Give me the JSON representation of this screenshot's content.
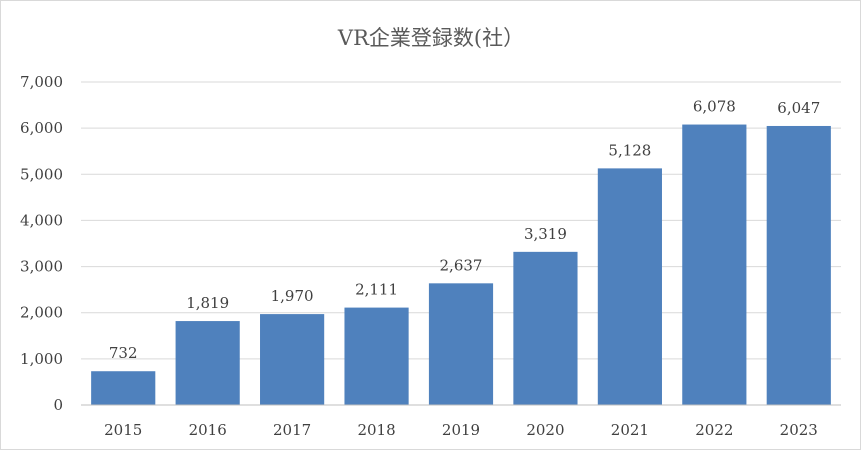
{
  "chart_data": {
    "type": "bar",
    "title": "VR企業登録数(社）",
    "categories": [
      "2015",
      "2016",
      "2017",
      "2018",
      "2019",
      "2020",
      "2021",
      "2022",
      "2023"
    ],
    "values": [
      732,
      1819,
      1970,
      2111,
      2637,
      3319,
      5128,
      6078,
      6047
    ],
    "data_labels": [
      "732",
      "1,819",
      "1,970",
      "2,111",
      "2,637",
      "3,319",
      "5,128",
      "6,078",
      "6,047"
    ],
    "ylim": [
      0,
      7000
    ],
    "yticks": [
      0,
      1000,
      2000,
      3000,
      4000,
      5000,
      6000,
      7000
    ],
    "ytick_labels": [
      "0",
      "1,000",
      "2,000",
      "3,000",
      "4,000",
      "5,000",
      "6,000",
      "7,000"
    ],
    "grid": true,
    "legend": "none",
    "bar_color": "#4f81bd"
  }
}
